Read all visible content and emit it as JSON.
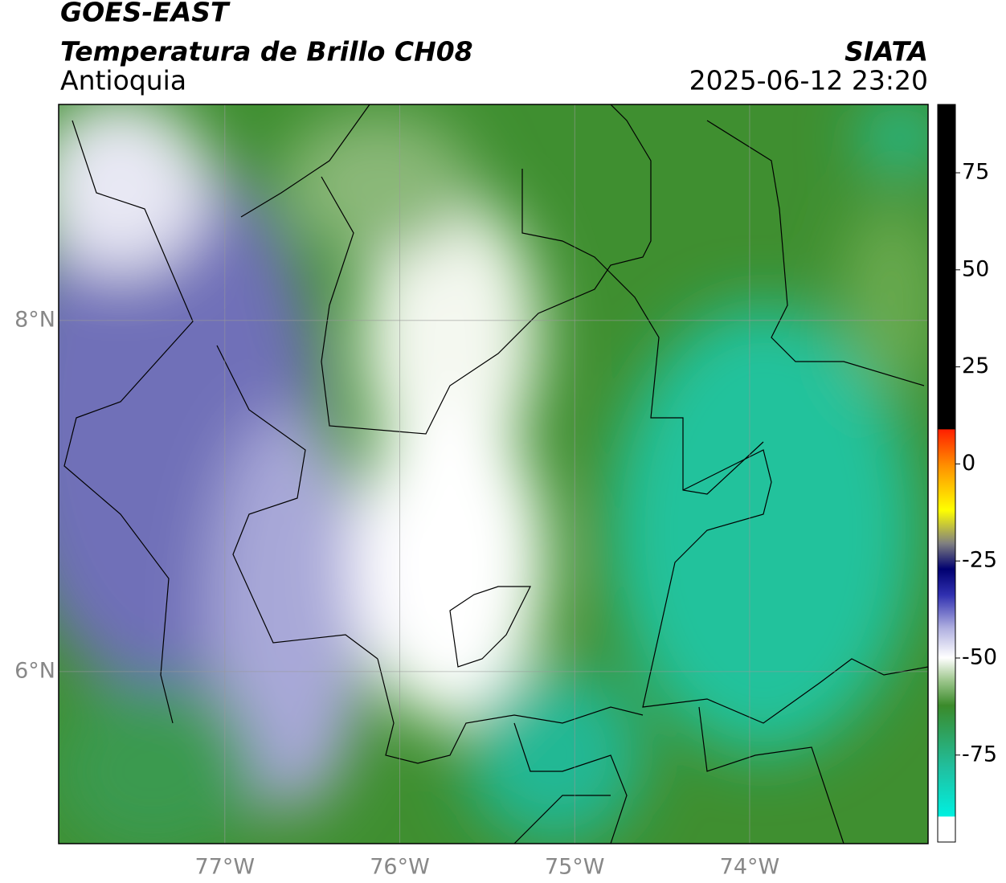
{
  "header": {
    "title": "GOES-EAST",
    "subtitle": "Temperatura de Brillo CH08",
    "source": "SIATA",
    "region": "Antioquia",
    "datetime": "2025-06-12 23:20"
  },
  "map": {
    "xlim": [
      -77.95,
      -72.98
    ],
    "ylim": [
      5.02,
      9.23
    ],
    "xticks": [
      {
        "value": -77,
        "label": "77°W"
      },
      {
        "value": -76,
        "label": "76°W"
      },
      {
        "value": -75,
        "label": "75°W"
      },
      {
        "value": -74,
        "label": "74°W"
      }
    ],
    "yticks": [
      {
        "value": 8,
        "label": "8°N"
      },
      {
        "value": 6,
        "label": "6°N"
      }
    ],
    "grid": true
  },
  "colorbar": {
    "lim": [
      -97.4,
      92.6
    ],
    "ticks": [
      75,
      50,
      25,
      0,
      -25,
      -50,
      -75
    ]
  }
}
